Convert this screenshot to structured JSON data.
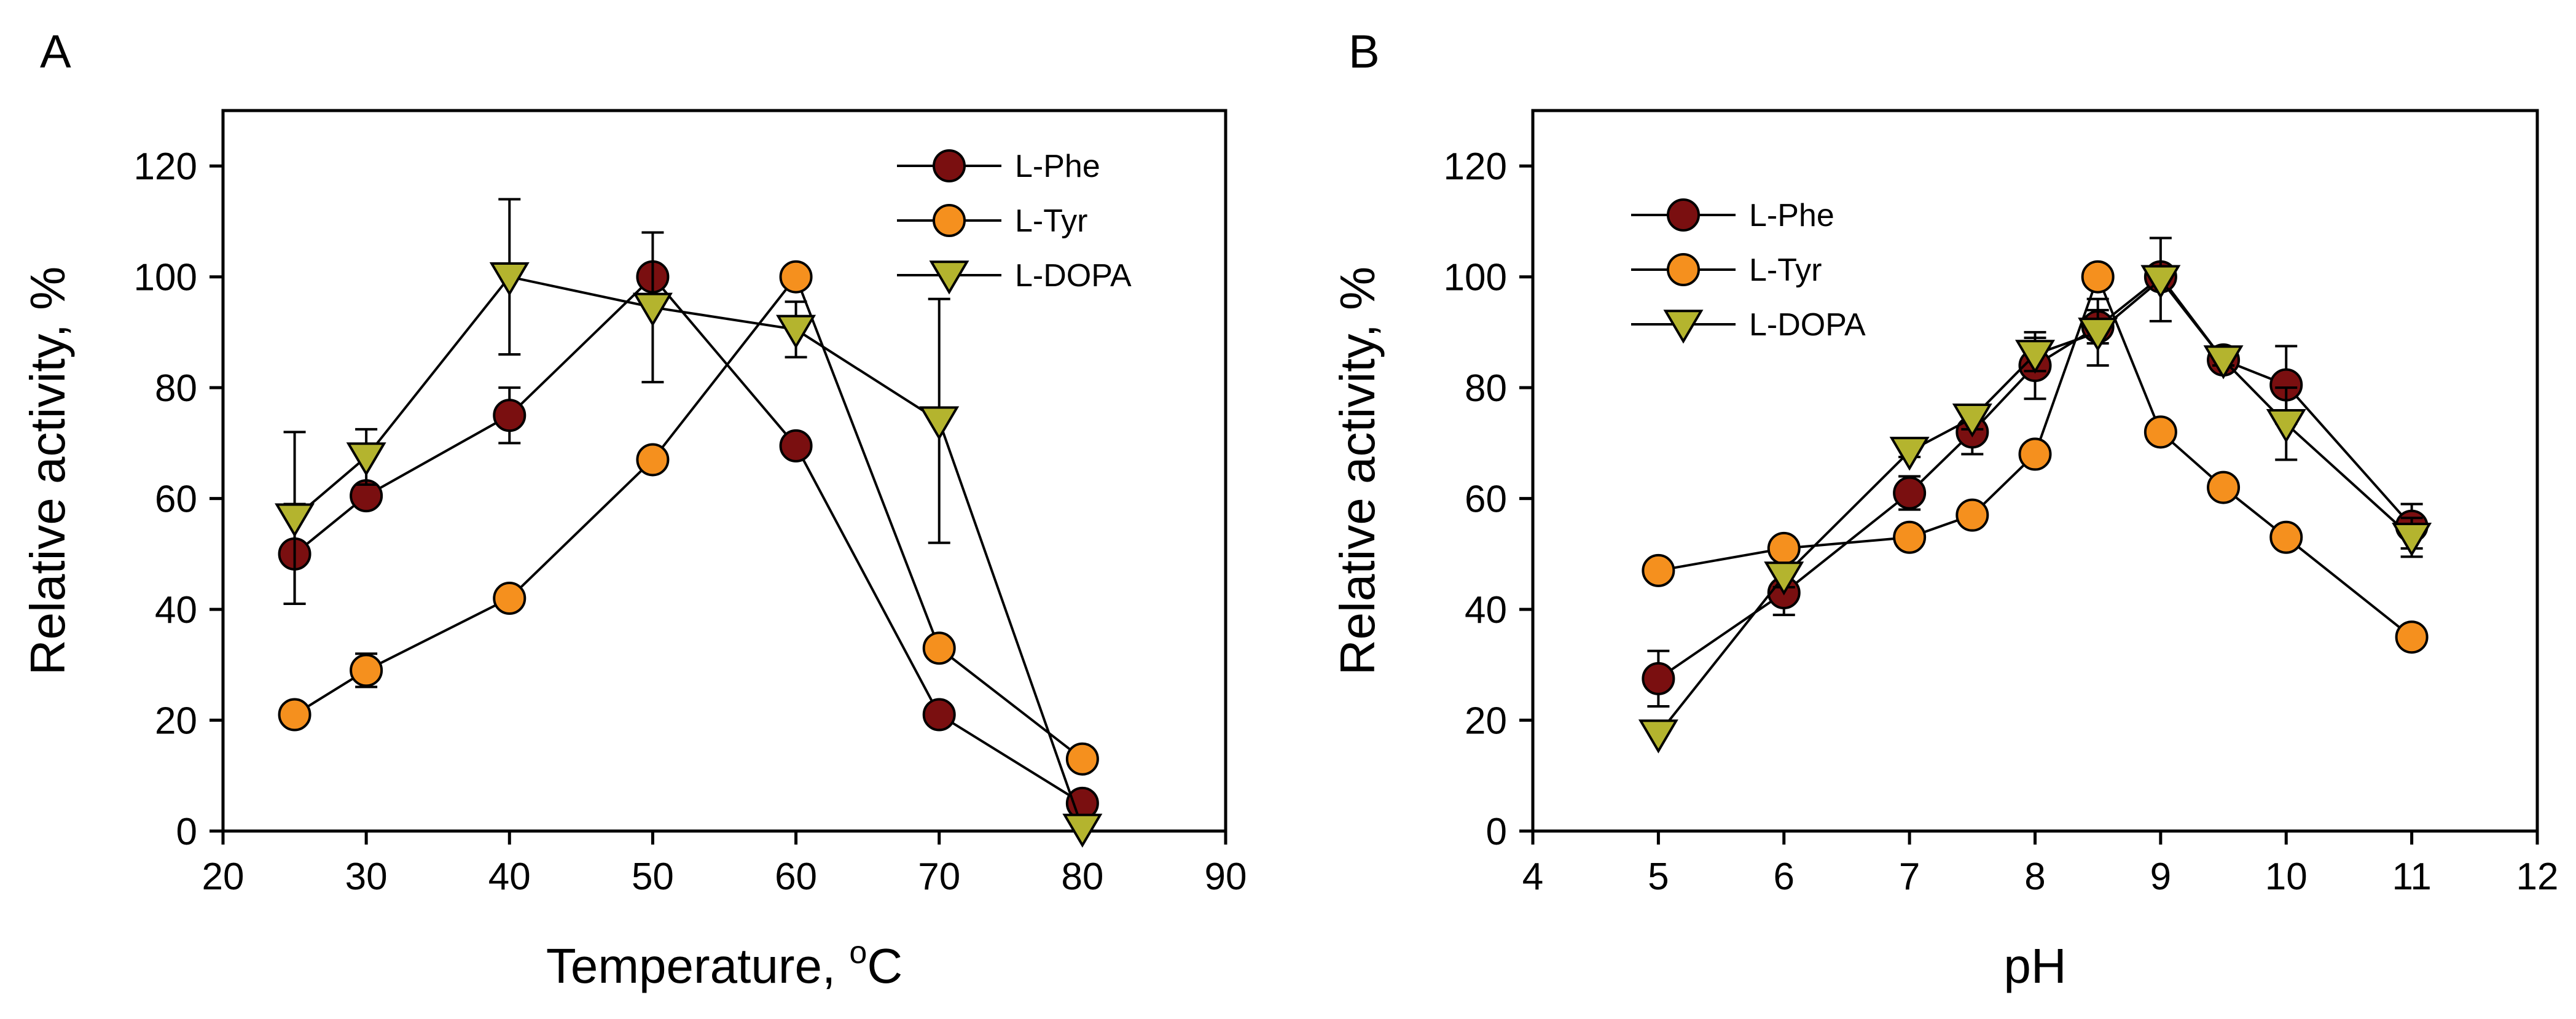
{
  "colors": {
    "L-Phe": "#7a0f10",
    "L-Tyr": "#f5901e",
    "L-DOPA": "#b4b42e",
    "stroke": "#000000"
  },
  "chart_data": [
    {
      "type": "line",
      "panel_label": "A",
      "xlabel": "Temperature, ",
      "xlabel_sup": "o",
      "xlabel_suffix": "C",
      "ylabel": "Relative activity, %",
      "xlim": [
        20,
        90
      ],
      "ylim": [
        0,
        130
      ],
      "xticks": [
        20,
        30,
        40,
        50,
        60,
        70,
        80,
        90
      ],
      "yticks": [
        0,
        20,
        40,
        60,
        80,
        100,
        120
      ],
      "grid": false,
      "legend_position": "top-right",
      "series": [
        {
          "name": "L-Phe",
          "marker": "circle",
          "points": [
            {
              "x": 25,
              "y": 50,
              "err": 9
            },
            {
              "x": 30,
              "y": 60.5,
              "err": 2
            },
            {
              "x": 40,
              "y": 75,
              "err": 5
            },
            {
              "x": 50,
              "y": 100,
              "err": 2
            },
            {
              "x": 60,
              "y": 69.5,
              "err": 1
            },
            {
              "x": 70,
              "y": 21,
              "err": 1
            },
            {
              "x": 80,
              "y": 5,
              "err": 1
            }
          ]
        },
        {
          "name": "L-Tyr",
          "marker": "circle",
          "points": [
            {
              "x": 25,
              "y": 21,
              "err": 1
            },
            {
              "x": 30,
              "y": 29,
              "err": 3
            },
            {
              "x": 40,
              "y": 42,
              "err": 1
            },
            {
              "x": 50,
              "y": 67,
              "err": 1
            },
            {
              "x": 60,
              "y": 100,
              "err": 1
            },
            {
              "x": 70,
              "y": 33,
              "err": 1
            },
            {
              "x": 80,
              "y": 13,
              "err": 1
            }
          ]
        },
        {
          "name": "L-DOPA",
          "marker": "triangle-down",
          "points": [
            {
              "x": 25,
              "y": 56.5,
              "err": 15.5
            },
            {
              "x": 30,
              "y": 67.5,
              "err": 5
            },
            {
              "x": 40,
              "y": 100,
              "err": 14
            },
            {
              "x": 50,
              "y": 94.5,
              "err": 13.5
            },
            {
              "x": 60,
              "y": 90.5,
              "err": 5
            },
            {
              "x": 70,
              "y": 74,
              "err": 22
            },
            {
              "x": 80,
              "y": 0.5,
              "err": 0
            }
          ]
        }
      ]
    },
    {
      "type": "line",
      "panel_label": "B",
      "xlabel": "pH",
      "ylabel": "Relative activity, %",
      "xlim": [
        4,
        12
      ],
      "ylim": [
        0,
        130
      ],
      "xticks": [
        4,
        5,
        6,
        7,
        8,
        9,
        10,
        11,
        12
      ],
      "yticks": [
        0,
        20,
        40,
        60,
        80,
        100,
        120
      ],
      "grid": false,
      "legend_position": "top-left",
      "series": [
        {
          "name": "L-Phe",
          "marker": "circle",
          "points": [
            {
              "x": 5,
              "y": 27.5,
              "err": 5
            },
            {
              "x": 6,
              "y": 43,
              "err": 4
            },
            {
              "x": 7,
              "y": 61,
              "err": 3
            },
            {
              "x": 7.5,
              "y": 72,
              "err": 4
            },
            {
              "x": 8,
              "y": 84,
              "err": 6
            },
            {
              "x": 8.5,
              "y": 91,
              "err": 3
            },
            {
              "x": 9,
              "y": 100,
              "err": 1
            },
            {
              "x": 9.5,
              "y": 85,
              "err": 1
            },
            {
              "x": 10,
              "y": 80.5,
              "err": 7
            },
            {
              "x": 11,
              "y": 55,
              "err": 4
            }
          ]
        },
        {
          "name": "L-Tyr",
          "marker": "circle",
          "points": [
            {
              "x": 5,
              "y": 47,
              "err": 1
            },
            {
              "x": 6,
              "y": 51,
              "err": 1
            },
            {
              "x": 7,
              "y": 53,
              "err": 1
            },
            {
              "x": 7.5,
              "y": 57,
              "err": 1
            },
            {
              "x": 8,
              "y": 68,
              "err": 1
            },
            {
              "x": 8.5,
              "y": 100,
              "err": 1
            },
            {
              "x": 9,
              "y": 72,
              "err": 1
            },
            {
              "x": 9.5,
              "y": 62,
              "err": 1
            },
            {
              "x": 10,
              "y": 53,
              "err": 1
            },
            {
              "x": 11,
              "y": 35,
              "err": 1
            }
          ]
        },
        {
          "name": "L-DOPA",
          "marker": "triangle-down",
          "points": [
            {
              "x": 5,
              "y": 17.5,
              "err": 0
            },
            {
              "x": 6,
              "y": 46,
              "err": 2
            },
            {
              "x": 7,
              "y": 68.5,
              "err": 1
            },
            {
              "x": 7.5,
              "y": 74.5,
              "err": 2
            },
            {
              "x": 8,
              "y": 86,
              "err": 3
            },
            {
              "x": 8.5,
              "y": 90,
              "err": 6
            },
            {
              "x": 9,
              "y": 99.5,
              "err": 7.5
            },
            {
              "x": 9.5,
              "y": 85,
              "err": 1
            },
            {
              "x": 10,
              "y": 73.5,
              "err": 6.5
            },
            {
              "x": 11,
              "y": 53,
              "err": 3.5
            }
          ]
        }
      ]
    }
  ]
}
